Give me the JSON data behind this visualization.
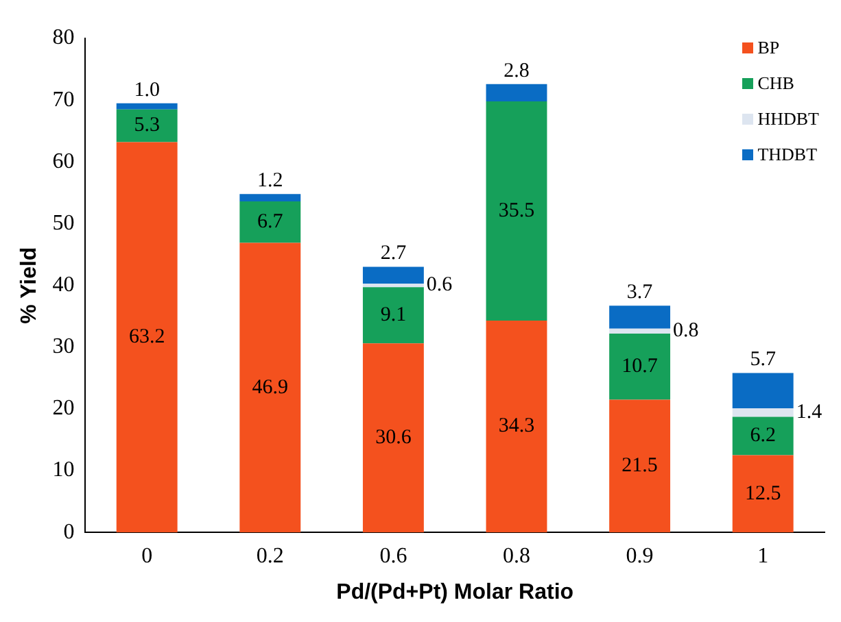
{
  "chart_data": {
    "type": "bar",
    "stacked": true,
    "xlabel": "Pd/(Pd+Pt) Molar Ratio",
    "ylabel": "% Yield",
    "categories": [
      "0",
      "0.2",
      "0.6",
      "0.8",
      "0.9",
      "1"
    ],
    "ylim": [
      0,
      80
    ],
    "yticks": [
      0,
      10,
      20,
      30,
      40,
      50,
      60,
      70,
      80
    ],
    "grid": false,
    "legend": "top right",
    "series": [
      {
        "name": "BP",
        "color": "#f4511e",
        "values": [
          63.2,
          46.9,
          30.6,
          34.3,
          21.5,
          12.5
        ],
        "value_labels": [
          "63.2",
          "46.9",
          "30.6",
          "34.3",
          "21.5",
          "12.5"
        ]
      },
      {
        "name": "CHB",
        "color": "#16a05a",
        "values": [
          5.3,
          6.7,
          9.1,
          35.5,
          10.7,
          6.2
        ],
        "value_labels": [
          "5.3",
          "6.7",
          "9.1",
          "35.5",
          "10.7",
          "6.2"
        ]
      },
      {
        "name": "HHDBT",
        "color": "#dde5f0",
        "values": [
          null,
          null,
          0.6,
          null,
          0.8,
          1.4
        ],
        "value_labels": [
          null,
          null,
          "0.6",
          null,
          "0.8",
          "1.4"
        ]
      },
      {
        "name": "THDBT",
        "color": "#0a6cc4",
        "values": [
          1.0,
          1.2,
          2.7,
          2.8,
          3.7,
          5.7
        ],
        "value_labels": [
          "1.0",
          "1.2",
          "2.7",
          "2.8",
          "3.7",
          "5.7"
        ]
      }
    ]
  }
}
